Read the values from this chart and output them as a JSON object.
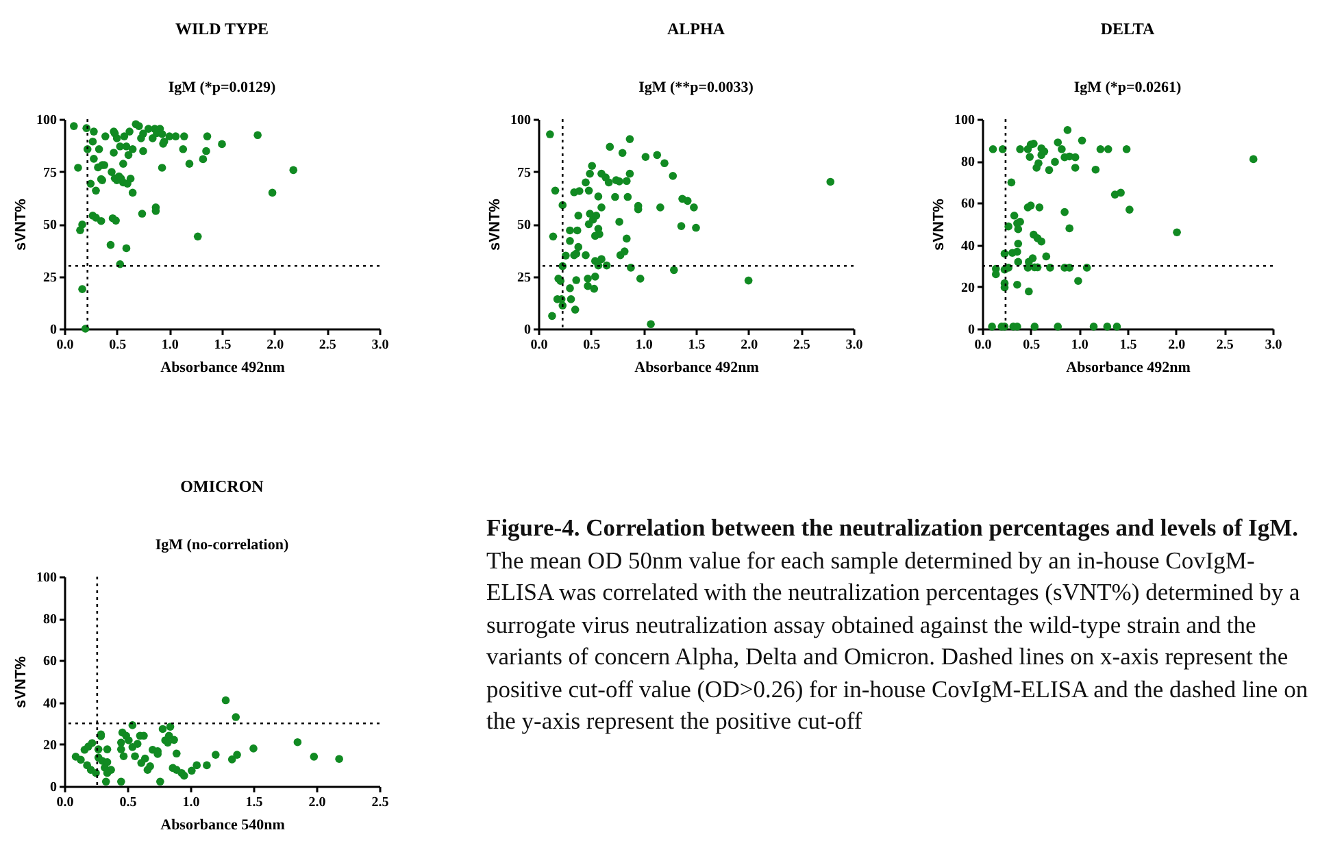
{
  "chart_data": [
    {
      "type": "scatter",
      "title": "WILD TYPE",
      "subtitle": "IgM (*p=0.0129)",
      "xlabel": "Absorbance 492nm",
      "ylabel": "sVNT%",
      "xlim": [
        0,
        3
      ],
      "xticks": [
        {
          "value": 0,
          "label": "0.0"
        },
        {
          "value": 0.5,
          "label": "0.5"
        },
        {
          "value": 1,
          "label": "1.0"
        },
        {
          "value": 1.5,
          "label": "1.5"
        },
        {
          "value": 2,
          "label": "2.0"
        },
        {
          "value": 2.5,
          "label": "2.5"
        },
        {
          "value": 3,
          "label": "3.0"
        }
      ],
      "ylim": [
        0,
        100
      ],
      "yticks": [
        0,
        25,
        50,
        75,
        100
      ],
      "marker": "circle",
      "grid": false,
      "ref_lines": [
        {
          "axis": "x",
          "value": 0.22,
          "line_style": "dotted",
          "color": "#000000"
        },
        {
          "axis": "y",
          "value": 30,
          "line_style": "dotted",
          "color": "#000000"
        }
      ],
      "series": [
        {
          "color": "#118a22",
          "x": [
            0.09,
            0.13,
            0.21,
            0.22,
            0.27,
            0.28,
            0.28,
            0.25,
            0.3,
            0.32,
            0.33,
            0.36,
            0.38,
            0.35,
            0.36,
            0.39,
            0.27,
            0.3,
            0.35,
            0.17,
            0.15,
            0.44,
            0.17,
            0.2,
            0.45,
            0.47,
            0.48,
            0.5,
            0.47,
            0.48,
            0.5,
            0.52,
            0.54,
            0.56,
            0.46,
            0.49,
            0.57,
            0.53,
            0.56,
            0.59,
            0.53,
            0.59,
            0.61,
            0.62,
            0.65,
            0.63,
            0.6,
            0.65,
            0.68,
            0.71,
            0.73,
            0.75,
            0.75,
            0.74,
            0.8,
            0.84,
            0.86,
            0.91,
            0.88,
            0.93,
            0.94,
            0.95,
            0.93,
            0.87,
            0.87,
            1.0,
            1.06,
            1.13,
            1.14,
            1.19,
            1.27,
            1.32,
            1.35,
            1.36,
            1.5,
            1.84,
            1.98,
            2.18
          ],
          "values": [
            96.7,
            76.8,
            95.7,
            85.7,
            89.3,
            94.1,
            81.1,
            69.2,
            65.9,
            77,
            85.7,
            78.1,
            78.1,
            71.4,
            70.9,
            91.8,
            54,
            53,
            51.4,
            49.7,
            47,
            40,
            18.9,
            0,
            74.8,
            94.1,
            93.2,
            90.9,
            84,
            71.8,
            70.9,
            72.7,
            71.6,
            69.8,
            52.7,
            51.6,
            91.8,
            87,
            78.7,
            38.4,
            30.8,
            87,
            82.9,
            94.1,
            85.7,
            71.6,
            69.2,
            64.9,
            97.6,
            96.7,
            90.9,
            93.1,
            84.8,
            54.9,
            95.4,
            90.9,
            95.4,
            95.4,
            93.3,
            92.9,
            88.3,
            89.3,
            76.8,
            57.9,
            56.2,
            91.8,
            91.8,
            85.7,
            91.8,
            78.7,
            44,
            80.9,
            84.8,
            91.8,
            88.1,
            92.4,
            64.9,
            75.7
          ]
        }
      ]
    },
    {
      "type": "scatter",
      "title": "ALPHA",
      "subtitle": "IgM (**p=0.0033)",
      "xlabel": "Absorbance 492nm",
      "ylabel": "sVNT%",
      "xlim": [
        0,
        3
      ],
      "xticks": [
        {
          "value": 0,
          "label": "0.0"
        },
        {
          "value": 0.5,
          "label": "0.5"
        },
        {
          "value": 1,
          "label": "1.0"
        },
        {
          "value": 1.5,
          "label": "1.5"
        },
        {
          "value": 2,
          "label": "2.0"
        },
        {
          "value": 2.5,
          "label": "2.5"
        },
        {
          "value": 3,
          "label": "3.0"
        }
      ],
      "ylim": [
        0,
        100
      ],
      "yticks": [
        0,
        25,
        50,
        75,
        100
      ],
      "marker": "circle",
      "grid": false,
      "ref_lines": [
        {
          "axis": "x",
          "value": 0.23,
          "line_style": "dotted",
          "color": "#000000"
        },
        {
          "axis": "y",
          "value": 30,
          "line_style": "dotted",
          "color": "#000000"
        }
      ],
      "series": [
        {
          "color": "#118a22",
          "x": [
            0.11,
            0.16,
            0.14,
            0.23,
            0.23,
            0.19,
            0.21,
            0.18,
            0.22,
            0.23,
            0.13,
            0.26,
            0.3,
            0.3,
            0.37,
            0.38,
            0.38,
            0.34,
            0.36,
            0.36,
            0.3,
            0.31,
            0.35,
            0.34,
            0.39,
            0.45,
            0.47,
            0.47,
            0.53,
            0.54,
            0.45,
            0.48,
            0.49,
            0.51,
            0.49,
            0.48,
            0.52,
            0.55,
            0.57,
            0.57,
            0.58,
            0.54,
            0.6,
            0.54,
            0.6,
            0.57,
            0.65,
            0.6,
            0.64,
            0.67,
            0.68,
            0.74,
            0.73,
            0.77,
            0.77,
            0.78,
            0.82,
            0.8,
            0.84,
            0.84,
            0.85,
            0.87,
            0.87,
            0.88,
            0.95,
            0.95,
            0.97,
            1.02,
            1.07,
            1.13,
            1.16,
            1.2,
            1.28,
            1.29,
            1.36,
            1.37,
            1.42,
            1.48,
            1.5,
            2.0,
            2.78
          ],
          "values": [
            92.8,
            65.9,
            44,
            59,
            29.9,
            23.9,
            22.8,
            14.1,
            14.1,
            11.1,
            6.1,
            34.9,
            41.9,
            46.9,
            46.9,
            54,
            39,
            35.1,
            35.8,
            23.2,
            19.3,
            14.1,
            9.1,
            65.1,
            65.7,
            35.1,
            23.9,
            20.4,
            19.1,
            24.9,
            69.8,
            65.9,
            74,
            77.7,
            54.9,
            49.9,
            52.1,
            54,
            63.1,
            47.7,
            45.1,
            44.3,
            57.9,
            32.3,
            33.2,
            30.2,
            30.2,
            74,
            72.2,
            69.8,
            86.8,
            70.9,
            62.9,
            70.3,
            51,
            35.1,
            36.9,
            83.9,
            43,
            70.5,
            62.9,
            74,
            90.5,
            29.1,
            58.6,
            57,
            23.9,
            82,
            2.2,
            82.9,
            57.9,
            79,
            72.9,
            28,
            49,
            62,
            61,
            57.9,
            48.2,
            23,
            70.1
          ]
        }
      ]
    },
    {
      "type": "scatter",
      "title": "DELTA",
      "subtitle": "IgM (*p=0.0261)",
      "xlabel": "Absorbance 492nm",
      "ylabel": "sVNT%",
      "xlim": [
        0,
        3
      ],
      "xticks": [
        {
          "value": 0,
          "label": "0.0"
        },
        {
          "value": 0.5,
          "label": "0.5"
        },
        {
          "value": 1,
          "label": "1.0"
        },
        {
          "value": 1.5,
          "label": "1.5"
        },
        {
          "value": 2,
          "label": "2.0"
        },
        {
          "value": 2.5,
          "label": "2.5"
        },
        {
          "value": 3,
          "label": "3.0"
        }
      ],
      "ylim": [
        0,
        100
      ],
      "yticks": [
        0,
        20,
        40,
        60,
        80,
        100
      ],
      "marker": "circle",
      "grid": false,
      "ref_lines": [
        {
          "axis": "x",
          "value": 0.24,
          "line_style": "dotted",
          "color": "#000000"
        },
        {
          "axis": "y",
          "value": 30,
          "line_style": "dotted",
          "color": "#000000"
        }
      ],
      "series": [
        {
          "color": "#118a22",
          "x": [
            0.11,
            0.21,
            0.1,
            0.2,
            0.23,
            0.32,
            0.36,
            0.54,
            0.78,
            1.15,
            1.29,
            1.39,
            0.3,
            0.27,
            0.14,
            0.14,
            0.23,
            0.23,
            0.23,
            0.23,
            0.27,
            0.33,
            0.36,
            0.39,
            0.37,
            0.37,
            0.36,
            0.37,
            0.31,
            0.36,
            0.39,
            0.47,
            0.5,
            0.53,
            0.49,
            0.56,
            0.58,
            0.61,
            0.61,
            0.64,
            0.69,
            0.75,
            0.78,
            0.82,
            0.88,
            0.85,
            0.9,
            0.96,
            0.96,
            1.03,
            1.17,
            1.22,
            1.3,
            1.49,
            0.47,
            0.5,
            0.59,
            0.53,
            0.57,
            0.61,
            0.48,
            0.47,
            0.52,
            0.54,
            0.57,
            0.66,
            0.7,
            0.48,
            0.85,
            0.9,
            0.85,
            0.9,
            0.99,
            1.08,
            1.37,
            1.43,
            1.52,
            2.01,
            2.8
          ],
          "values": [
            85.7,
            85.7,
            1,
            1,
            1,
            1,
            1,
            1,
            1,
            1,
            1,
            1,
            69.8,
            29.1,
            28.6,
            26,
            35.8,
            28.2,
            21.7,
            19.7,
            48.8,
            54,
            50.3,
            51,
            47.5,
            40.6,
            36.7,
            31.9,
            36.2,
            21,
            85.7,
            85.7,
            87.9,
            88.3,
            82,
            76.8,
            79,
            82.9,
            86.1,
            84.6,
            75.7,
            79.6,
            88.9,
            85.7,
            94.8,
            81.8,
            82.2,
            81.8,
            76.8,
            89.8,
            75.9,
            85.7,
            85.7,
            85.7,
            57.9,
            58.8,
            57.9,
            44.9,
            43.2,
            41.6,
            31.9,
            29.1,
            33.6,
            29.3,
            29.3,
            34.5,
            29.1,
            17.8,
            55.7,
            47.9,
            29.1,
            29.1,
            22.8,
            29.1,
            64,
            64.9,
            56.8,
            46,
            80.9
          ]
        }
      ]
    },
    {
      "type": "scatter",
      "title": "OMICRON",
      "subtitle": "IgM (no-correlation)",
      "xlabel": "Absorbance 540nm",
      "ylabel": "sVNT%",
      "xlim": [
        0,
        2.5
      ],
      "xticks": [
        {
          "value": 0,
          "label": "0.0"
        },
        {
          "value": 0.5,
          "label": "0.5"
        },
        {
          "value": 1,
          "label": "1.0"
        },
        {
          "value": 1.5,
          "label": "1.5"
        },
        {
          "value": 2,
          "label": "2.0"
        },
        {
          "value": 2.5,
          "label": "2.5"
        }
      ],
      "ylim": [
        0,
        100
      ],
      "yticks": [
        0,
        20,
        40,
        60,
        80,
        100
      ],
      "marker": "circle",
      "grid": false,
      "ref_lines": [
        {
          "axis": "x",
          "value": 0.26,
          "line_style": "dotted",
          "color": "#000000"
        },
        {
          "axis": "y",
          "value": 30,
          "line_style": "dotted",
          "color": "#000000"
        }
      ],
      "series": [
        {
          "color": "#118a22",
          "x": [
            0.09,
            0.13,
            0.16,
            0.19,
            0.22,
            0.18,
            0.21,
            0.25,
            0.29,
            0.29,
            0.27,
            0.27,
            0.3,
            0.32,
            0.34,
            0.34,
            0.37,
            0.34,
            0.33,
            0.45,
            0.46,
            0.45,
            0.45,
            0.47,
            0.49,
            0.51,
            0.54,
            0.54,
            0.56,
            0.58,
            0.6,
            0.63,
            0.61,
            0.64,
            0.66,
            0.68,
            0.7,
            0.74,
            0.74,
            0.76,
            0.78,
            0.8,
            0.82,
            0.83,
            0.84,
            0.87,
            0.89,
            0.89,
            0.86,
            0.93,
            0.95,
            1.01,
            1.05,
            1.13,
            1.2,
            1.28,
            1.33,
            1.36,
            1.37,
            1.5,
            1.85,
            1.98,
            2.18
          ],
          "values": [
            14.1,
            12.6,
            17.4,
            18.9,
            20.6,
            10,
            7.8,
            6.3,
            24.7,
            23.9,
            17.6,
            13.7,
            12.1,
            8.9,
            17.6,
            11.5,
            7.8,
            6.3,
            2.2,
            2.2,
            25.6,
            20.8,
            17.6,
            14.3,
            24.1,
            21.9,
            29.1,
            18.7,
            14.3,
            20.2,
            24.1,
            24.1,
            11.1,
            13.2,
            7.8,
            9.5,
            17.4,
            16.7,
            15.4,
            2.2,
            27.3,
            21.9,
            20.8,
            24.1,
            28.4,
            22.1,
            15.6,
            7.8,
            8.7,
            6.3,
            5,
            7.4,
            10,
            10,
            15,
            41,
            12.8,
            33,
            15,
            18,
            21,
            14.1,
            13
          ]
        }
      ],
      "annotations": [
        "Figure-4. Correlation between the neutralization percentages and levels of IgM.",
        "The mean OD 50nm value for each sample determined by an in-house CovIgM-ELISA was correlated with the neutralization percentages (sVNT%) determined by a surrogate virus neutralization assay obtained against the wild-type strain and the variants of concern  Alpha, Delta and Omicron. Dashed lines on x-axis represent the positive cut-off value (OD>0.26) for in-house CovIgM-ELISA and the dashed line on the y-axis represent the positive cut-off"
      ]
    }
  ]
}
